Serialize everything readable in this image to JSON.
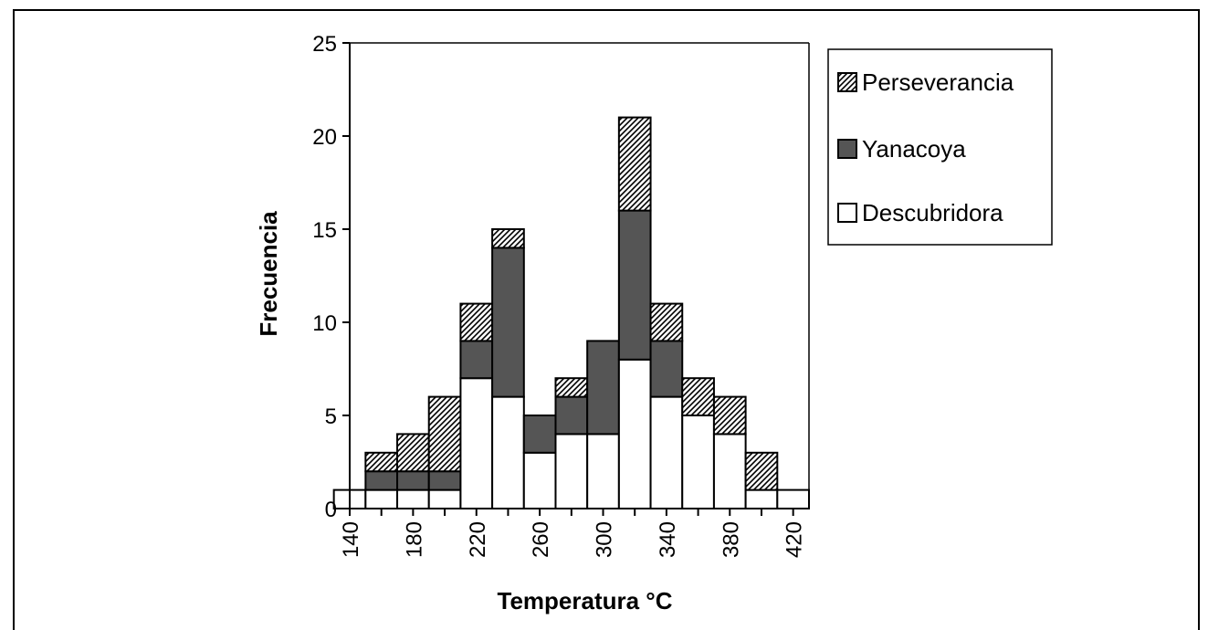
{
  "chart_data": {
    "type": "bar",
    "stacked": true,
    "xlabel": "Temperatura °C",
    "ylabel": "Frecuencia",
    "ylim": [
      0,
      25
    ],
    "yticks": [
      0,
      5,
      10,
      15,
      20,
      25
    ],
    "xlim": [
      140,
      430
    ],
    "xtick_labels": [
      "140",
      "180",
      "220",
      "260",
      "300",
      "340",
      "380",
      "420"
    ],
    "bin_width": 20,
    "categories": [
      140,
      160,
      180,
      200,
      220,
      240,
      260,
      280,
      300,
      320,
      340,
      360,
      380,
      400,
      420
    ],
    "series": [
      {
        "name": "Descubridora",
        "pattern": "white",
        "values": [
          1,
          1,
          1,
          1,
          7,
          6,
          3,
          4,
          4,
          8,
          6,
          5,
          4,
          1,
          1
        ]
      },
      {
        "name": "Yanacoya",
        "pattern": "dark-gray",
        "values": [
          0,
          1,
          1,
          1,
          2,
          8,
          2,
          2,
          5,
          8,
          3,
          0,
          0,
          0,
          0
        ]
      },
      {
        "name": "Perseverancia",
        "pattern": "hatched",
        "values": [
          0,
          1,
          2,
          4,
          2,
          1,
          0,
          1,
          0,
          5,
          2,
          2,
          2,
          2,
          0
        ]
      }
    ],
    "legend_order": [
      "Perseverancia",
      "Yanacoya",
      "Descubridora"
    ],
    "legend_position": "right",
    "grid": false
  }
}
